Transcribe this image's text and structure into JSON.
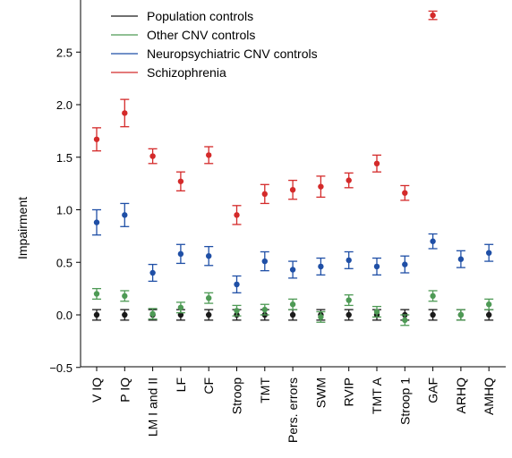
{
  "chart_data": {
    "type": "scatter",
    "subtype": "dot plot with error bars",
    "title": "",
    "xlabel": "",
    "ylabel": "Impairment",
    "ylim": [
      -0.5,
      2.85
    ],
    "yticks": [
      -0.5,
      0.0,
      0.5,
      1.0,
      1.5,
      2.0,
      2.5
    ],
    "ytick_labels": [
      "−0.5",
      "0.0",
      "0.5",
      "1.0",
      "1.5",
      "2.0",
      "2.5"
    ],
    "grid": false,
    "legend_position": "top-left",
    "categories": [
      "V IQ",
      "P IQ",
      "LM I and II",
      "LF",
      "CF",
      "Stroop",
      "TMT",
      "Pers. errors",
      "SWM",
      "RVIP",
      "TMT A",
      "Stroop 1",
      "GAF",
      "ARHQ",
      "AMHQ"
    ],
    "series": [
      {
        "name": "Population controls",
        "color": "#1a1a1a",
        "values": [
          0.0,
          0.0,
          0.0,
          0.0,
          0.0,
          0.0,
          0.0,
          0.0,
          0.0,
          0.0,
          0.0,
          0.0,
          0.0,
          0.0,
          0.0
        ],
        "err": [
          0.05,
          0.05,
          0.05,
          0.05,
          0.05,
          0.05,
          0.05,
          0.05,
          0.05,
          0.05,
          0.05,
          0.05,
          0.05,
          0.05,
          0.05
        ]
      },
      {
        "name": "Other CNV controls",
        "color": "#4e9a55",
        "values": [
          0.2,
          0.18,
          0.01,
          0.07,
          0.16,
          0.04,
          0.05,
          0.1,
          -0.02,
          0.14,
          0.03,
          -0.05,
          0.18,
          0.0,
          0.1
        ],
        "err": [
          0.05,
          0.05,
          0.05,
          0.05,
          0.05,
          0.05,
          0.05,
          0.05,
          0.05,
          0.05,
          0.05,
          0.05,
          0.05,
          0.05,
          0.05
        ]
      },
      {
        "name": "Neuropsychiatric CNV controls",
        "color": "#1f4fa6",
        "values": [
          0.88,
          0.95,
          0.4,
          0.58,
          0.56,
          0.29,
          0.51,
          0.43,
          0.46,
          0.52,
          0.46,
          0.48,
          0.7,
          0.53,
          0.59
        ],
        "err": [
          0.12,
          0.11,
          0.08,
          0.09,
          0.09,
          0.08,
          0.09,
          0.08,
          0.08,
          0.08,
          0.08,
          0.08,
          0.07,
          0.08,
          0.08
        ]
      },
      {
        "name": "Schizophrenia",
        "color": "#d42a2a",
        "values": [
          1.67,
          1.92,
          1.51,
          1.27,
          1.52,
          0.95,
          1.15,
          1.19,
          1.22,
          1.28,
          1.44,
          1.16,
          2.85,
          null,
          null
        ],
        "err": [
          0.11,
          0.13,
          0.07,
          0.09,
          0.08,
          0.09,
          0.09,
          0.09,
          0.1,
          0.07,
          0.08,
          0.07,
          0.04,
          null,
          null
        ]
      }
    ]
  }
}
